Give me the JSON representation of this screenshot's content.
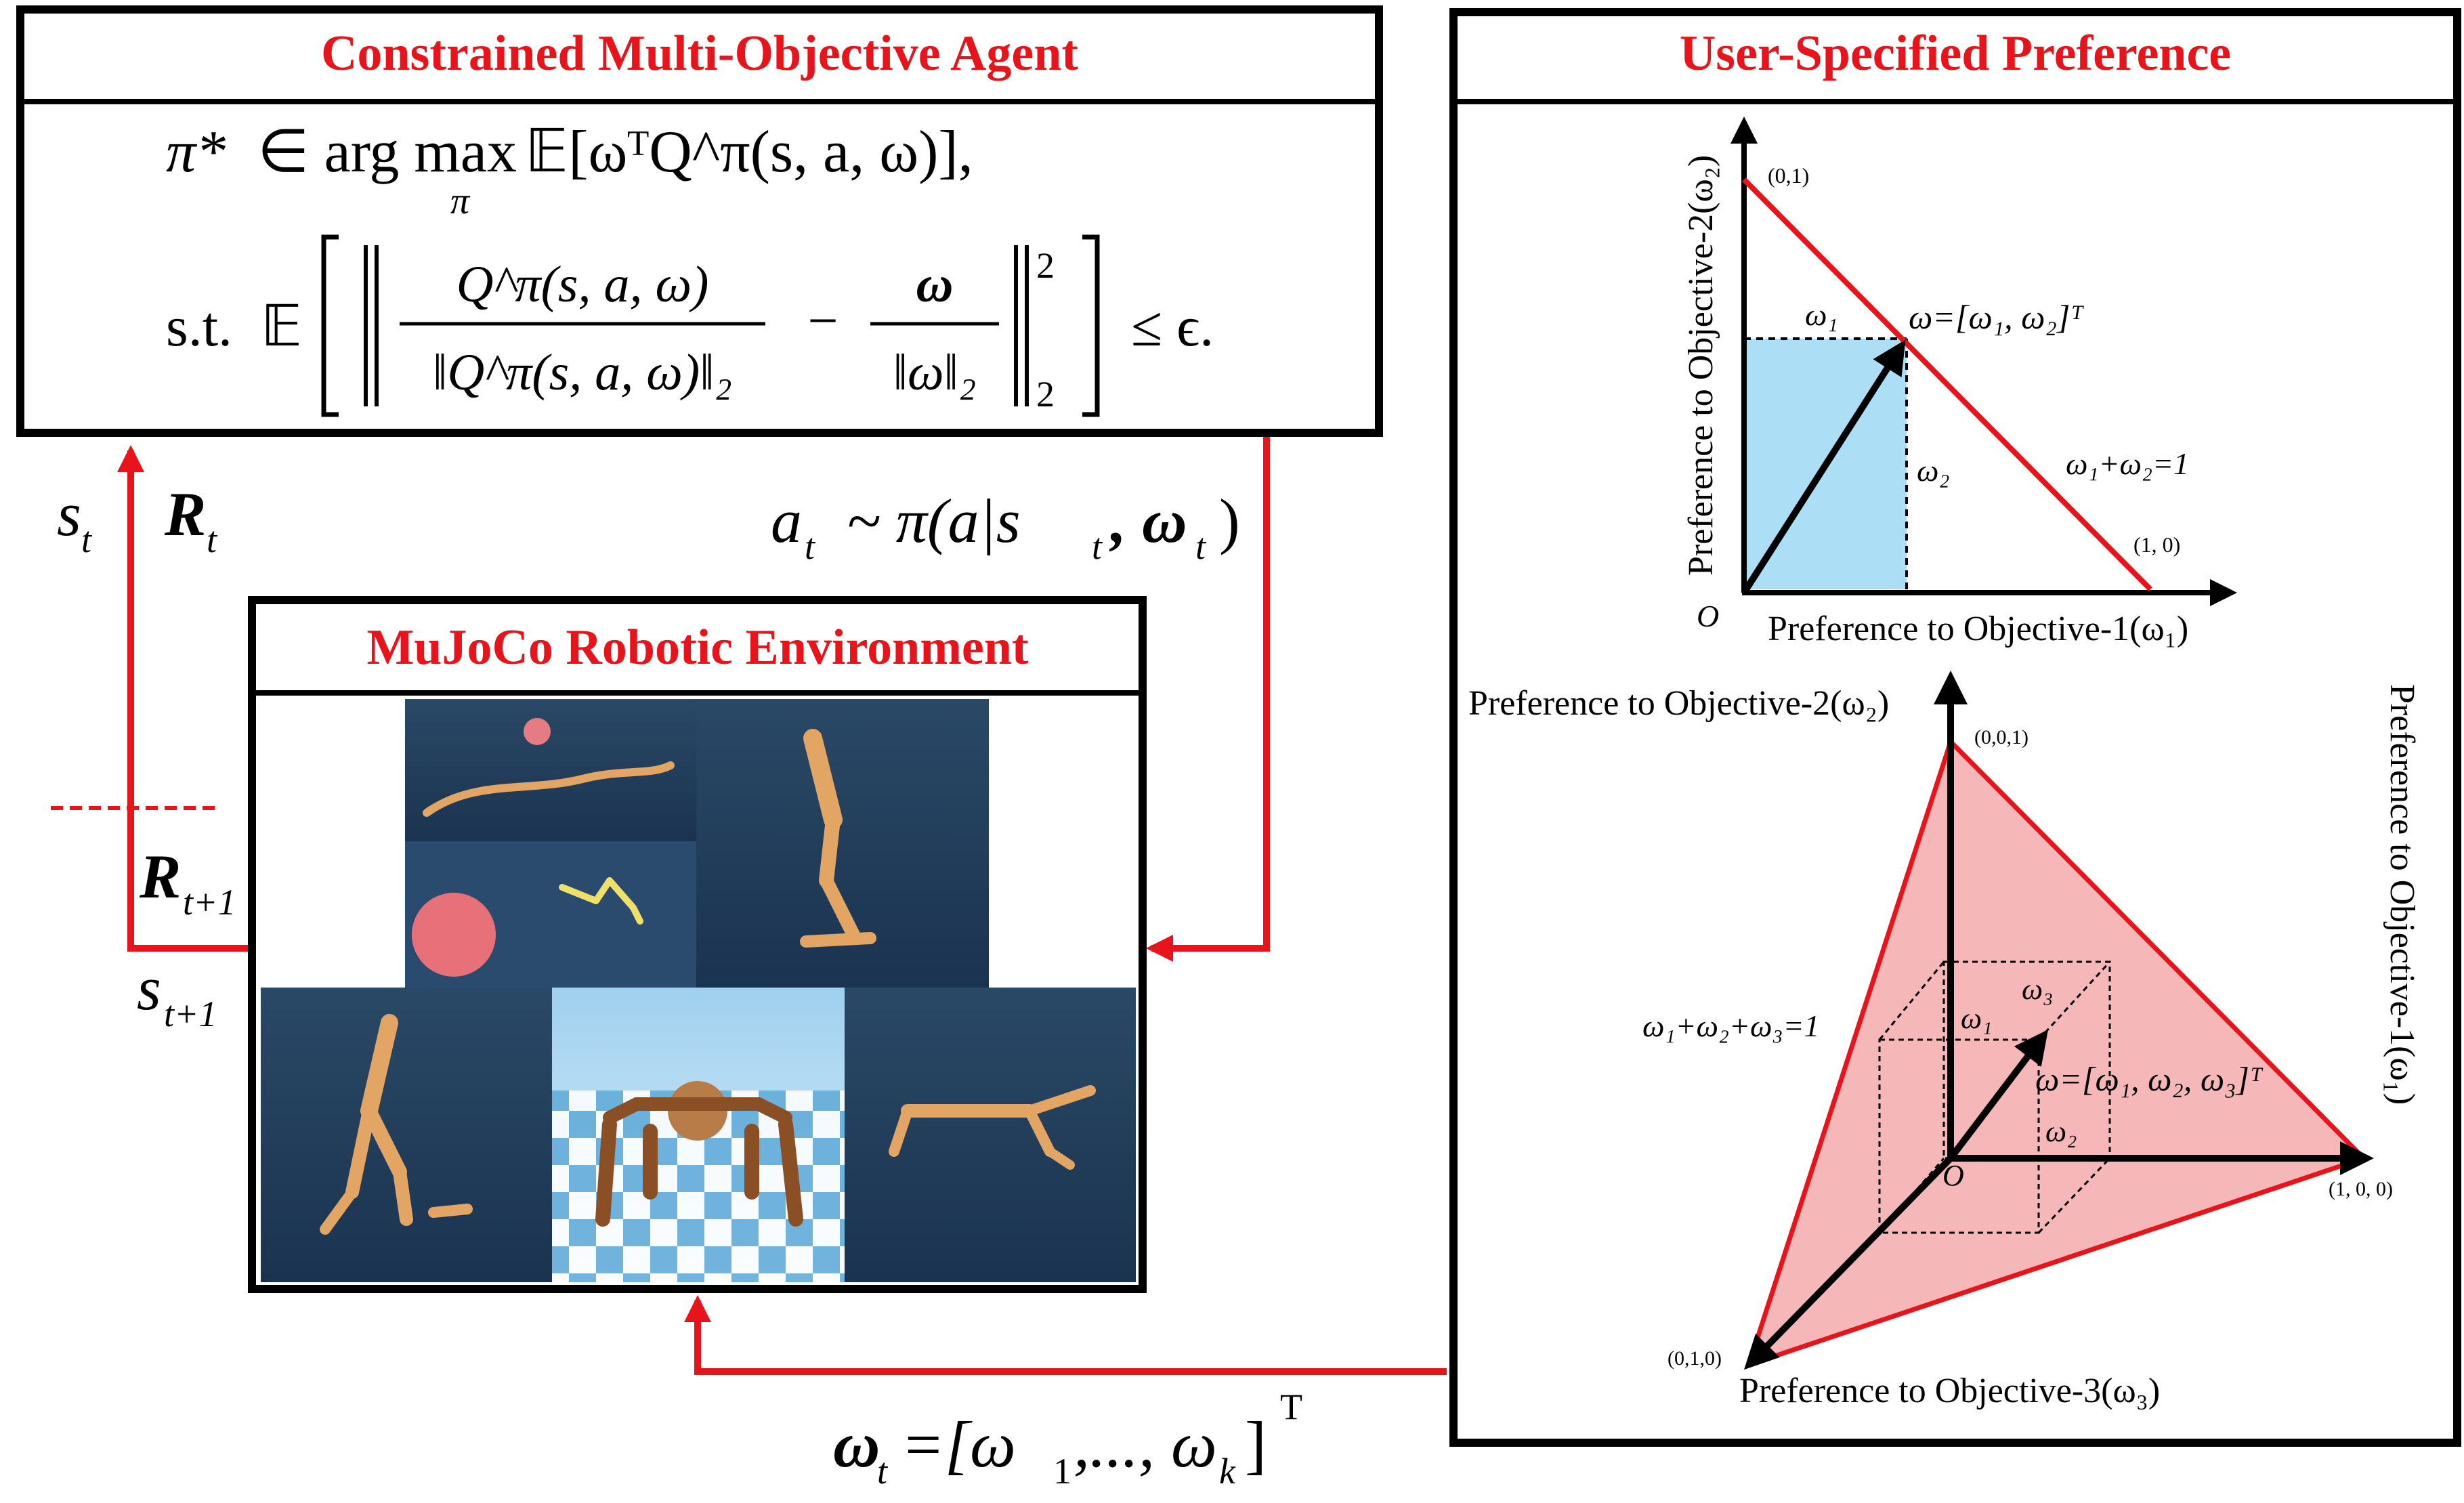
{
  "agent_box": {
    "title": "Constrained Multi-Objective Agent",
    "objective_line": "π* ∈ arg max_π 𝔼[ωᵀQ^π(s,a,ω)],",
    "objective_parts": {
      "pi_star": "π*",
      "in_argmax": "∈ arg max",
      "under_pi": "π",
      "expect": "𝔼[ωᵀQ^π(s, a, ω)],"
    },
    "constraint_parts": {
      "st": "s.t.",
      "expect": "𝔼",
      "num1": "Q^π(s, a, ω)",
      "den1": "‖Q^π(s, a, ω)‖₂",
      "minus": "−",
      "num2": "ω",
      "den2": "‖ω‖₂",
      "sup": "2",
      "sub": "2",
      "leq": "≤ ϵ."
    }
  },
  "env_box": {
    "title": "MuJoCo Robotic Environment"
  },
  "pref_box": {
    "title": "User-Specified Preference"
  },
  "signals": {
    "s_t": "s",
    "s_t_sub": "t",
    "R_t": "R",
    "R_t_sub": "t",
    "R_t1": "R",
    "R_t1_sub": "t+1",
    "s_t1": "s",
    "s_t1_sub": "t+1",
    "action": "a",
    "action_sub": "t",
    "action_rest": "~ π(a|s",
    "action_rest_sub": "t",
    "action_omega": ", ω",
    "action_omega_sub": "t",
    "action_close": ")",
    "omega_t": "ω",
    "omega_t_sub": "t",
    "omega_vec": "=[ω",
    "omega_vec_1": "1",
    "omega_dots": ",..., ω",
    "omega_k": "k",
    "omega_close": "]",
    "omega_T": "T"
  },
  "chart2d": {
    "ylabel": "Preference to Objective-2(ω₂)",
    "xlabel": "Preference to Objective-1(ω₁)",
    "origin": "O",
    "pt_01": "(0,1)",
    "pt_10": "(1, 0)",
    "w1": "ω₁",
    "w2": "ω₂",
    "vec": "ω=[ω₁, ω₂]ᵀ",
    "line": "ω₁+ω₂=1"
  },
  "chart3d": {
    "axis2": "Preference to Objective-2(ω₂)",
    "axis1": "Preference to Objective-1(ω₁)",
    "axis3": "Preference to Objective-3(ω₃)",
    "pt_001": "(0,0,1)",
    "pt_100": "(1, 0, 0)",
    "pt_010": "(0,1,0)",
    "plane": "ω₁+ω₂+ω₃=1",
    "w1": "ω₁",
    "w2": "ω₂",
    "w3": "ω₃",
    "vec": "ω=[ω₁, ω₂, ω₃]ᵀ",
    "origin": "O"
  },
  "colors": {
    "accent": "#e8141b",
    "fill_blue": "#acdff5",
    "fill_pink": "#f5b7b7",
    "frame": "#000000"
  }
}
